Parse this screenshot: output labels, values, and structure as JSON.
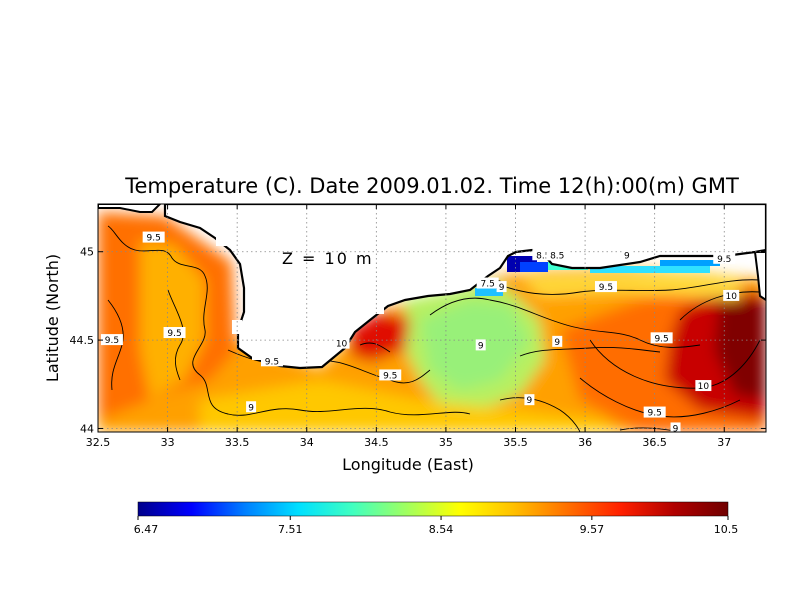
{
  "chart_data": {
    "type": "heatmap",
    "title": "Temperature (C). Date 2009.01.02. Time 12(h):00(m) GMT",
    "xlabel": "Longitude (East)",
    "ylabel": "Latitude (North)",
    "xlim": [
      32.5,
      37.3
    ],
    "ylim": [
      43.98,
      45.27
    ],
    "x_ticks": [
      "32.5",
      "33",
      "33.5",
      "34",
      "34.5",
      "35",
      "35.5",
      "36",
      "36.5",
      "37"
    ],
    "y_ticks": [
      "44",
      "44.5",
      "45"
    ],
    "annotation": "Z = 10 m",
    "grid": true,
    "colorbar": {
      "orientation": "horizontal",
      "min": 6.47,
      "max": 10.5,
      "tick_labels": [
        "6.47",
        "7.51",
        "8.54",
        "9.57",
        "10.5"
      ],
      "colors": [
        "#00008b",
        "#0000ff",
        "#0080ff",
        "#00e0ff",
        "#40ffc0",
        "#a0ff60",
        "#ffff00",
        "#ffc000",
        "#ff7000",
        "#ff2000",
        "#b00000",
        "#700000"
      ]
    },
    "contour_labels": [
      {
        "lon": 32.9,
        "lat": 45.08,
        "text": "9.5"
      },
      {
        "lon": 32.6,
        "lat": 44.5,
        "text": "9.5"
      },
      {
        "lon": 33.05,
        "lat": 44.54,
        "text": "9.5"
      },
      {
        "lon": 33.75,
        "lat": 44.38,
        "text": "9.5"
      },
      {
        "lon": 34.25,
        "lat": 44.48,
        "text": "10"
      },
      {
        "lon": 34.6,
        "lat": 44.3,
        "text": "9.5"
      },
      {
        "lon": 33.6,
        "lat": 44.12,
        "text": "9"
      },
      {
        "lon": 35.3,
        "lat": 44.82,
        "text": "7.5"
      },
      {
        "lon": 35.4,
        "lat": 44.8,
        "text": "9"
      },
      {
        "lon": 35.7,
        "lat": 44.98,
        "text": "8.5"
      },
      {
        "lon": 35.8,
        "lat": 44.98,
        "text": "8.5"
      },
      {
        "lon": 36.3,
        "lat": 44.98,
        "text": "9"
      },
      {
        "lon": 36.15,
        "lat": 44.8,
        "text": "9.5"
      },
      {
        "lon": 37.0,
        "lat": 44.96,
        "text": "9.5"
      },
      {
        "lon": 37.05,
        "lat": 44.75,
        "text": "10"
      },
      {
        "lon": 35.25,
        "lat": 44.47,
        "text": "9"
      },
      {
        "lon": 35.8,
        "lat": 44.49,
        "text": "9"
      },
      {
        "lon": 36.55,
        "lat": 44.51,
        "text": "9.5"
      },
      {
        "lon": 36.85,
        "lat": 44.24,
        "text": "10"
      },
      {
        "lon": 35.6,
        "lat": 44.16,
        "text": "9"
      },
      {
        "lon": 36.5,
        "lat": 44.09,
        "text": "9.5"
      },
      {
        "lon": 36.65,
        "lat": 44.0,
        "text": "9"
      }
    ]
  }
}
